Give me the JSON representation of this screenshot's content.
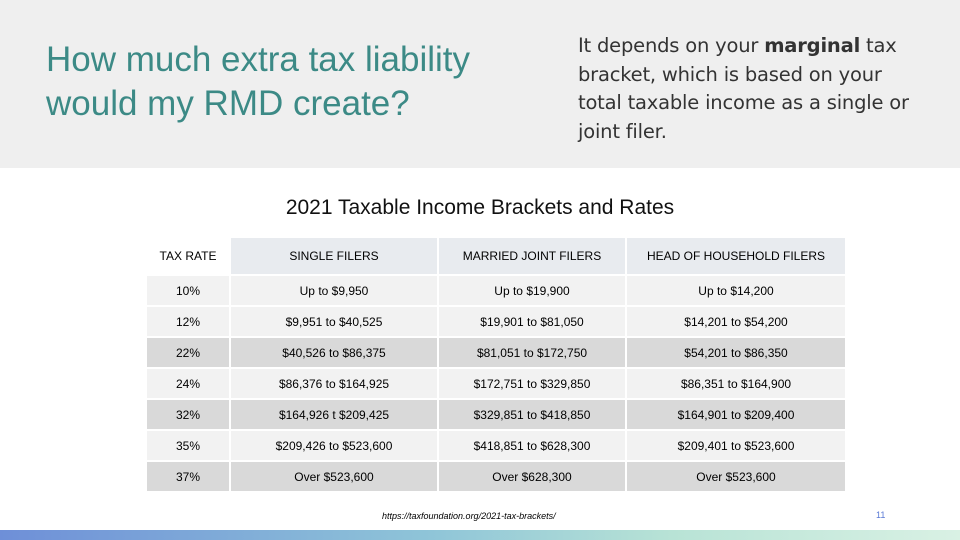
{
  "header": {
    "title": "How much extra tax liability would my RMD create?",
    "explanation_pre": "It depends on your ",
    "explanation_bold": "marginal",
    "explanation_post": " tax bracket, which is based on your total taxable income as a single or joint filer."
  },
  "table": {
    "title": "2021 Taxable Income Brackets and Rates",
    "headers": [
      "TAX RATE",
      "SINGLE FILERS",
      "MARRIED JOINT FILERS",
      "HEAD OF HOUSEHOLD FILERS"
    ],
    "rows": [
      [
        "10%",
        "Up to $9,950",
        "Up to $19,900",
        "Up to $14,200"
      ],
      [
        "12%",
        "$9,951 to $40,525",
        "$19,901 to $81,050",
        "$14,201 to $54,200"
      ],
      [
        "22%",
        "$40,526 to $86,375",
        "$81,051 to $172,750",
        "$54,201 to $86,350"
      ],
      [
        "24%",
        "$86,376 to $164,925",
        "$172,751 to $329,850",
        "$86,351 to $164,900"
      ],
      [
        "32%",
        "$164,926 t $209,425",
        "$329,851 to $418,850",
        "$164,901 to $209,400"
      ],
      [
        "35%",
        "$209,426 to $523,600",
        "$418,851 to $628,300",
        "$209,401 to $523,600"
      ],
      [
        "37%",
        "Over $523,600",
        "Over $628,300",
        "Over $523,600"
      ]
    ]
  },
  "source": "https://taxfoundation.org/2021-tax-brackets/",
  "page_number": "11",
  "colors": {
    "title": "#3c8a86",
    "header_band": "#efefef",
    "row_light": "#f2f2f2",
    "row_dark": "#d9d9d9",
    "page_number": "#5b7bd5"
  }
}
